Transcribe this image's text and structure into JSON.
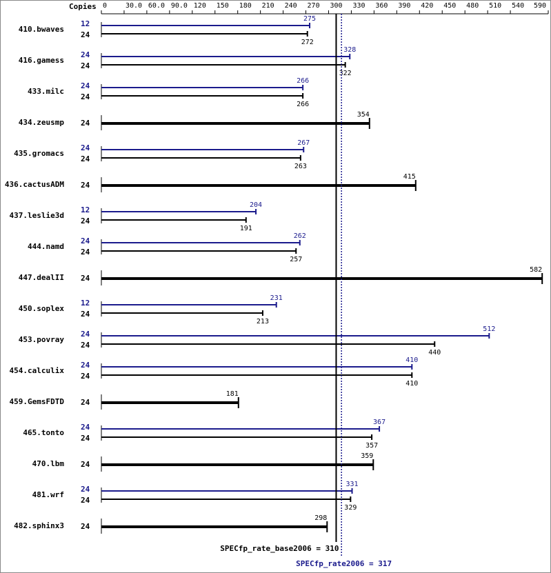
{
  "chart_data": {
    "type": "spec-bar",
    "copies_header": "Copies",
    "categories": [
      "410.bwaves",
      "416.gamess",
      "433.milc",
      "434.zeusmp",
      "435.gromacs",
      "436.cactusADM",
      "437.leslie3d",
      "444.namd",
      "447.dealII",
      "450.soplex",
      "453.povray",
      "454.calculix",
      "459.GemsFDTD",
      "465.tonto",
      "470.lbm",
      "481.wrf",
      "482.sphinx3"
    ],
    "base": {
      "color": "#000000",
      "copies": [
        24,
        24,
        24,
        24,
        24,
        24,
        24,
        24,
        24,
        24,
        24,
        24,
        24,
        24,
        24,
        24,
        24
      ],
      "values": [
        272,
        322,
        266,
        354,
        263,
        415,
        191,
        257,
        582,
        213,
        440,
        410,
        181,
        357,
        359,
        329,
        298
      ]
    },
    "peak": {
      "color": "#1a1a8c",
      "copies": [
        12,
        24,
        24,
        null,
        24,
        null,
        12,
        24,
        null,
        12,
        24,
        24,
        null,
        24,
        null,
        24,
        null
      ],
      "values": [
        275,
        328,
        266,
        null,
        267,
        null,
        204,
        262,
        null,
        231,
        512,
        410,
        null,
        367,
        null,
        331,
        null
      ]
    },
    "xlim": [
      0,
      590
    ],
    "xticks": [
      0,
      {
        "value": 30,
        "label": "30.0"
      },
      {
        "value": 60,
        "label": "60.0"
      },
      {
        "value": 90,
        "label": "90.0"
      },
      120,
      150,
      180,
      210,
      240,
      270,
      300,
      330,
      360,
      390,
      420,
      450,
      480,
      510,
      540,
      590
    ],
    "reference_lines": [
      {
        "value": 310,
        "label": "SPECfp_rate_base2006 = 310",
        "color": "#000000",
        "style": "solid"
      },
      {
        "value": 317,
        "label": "SPECfp_rate2006 = 317",
        "color": "#1a1a8c",
        "style": "dotted"
      }
    ]
  }
}
